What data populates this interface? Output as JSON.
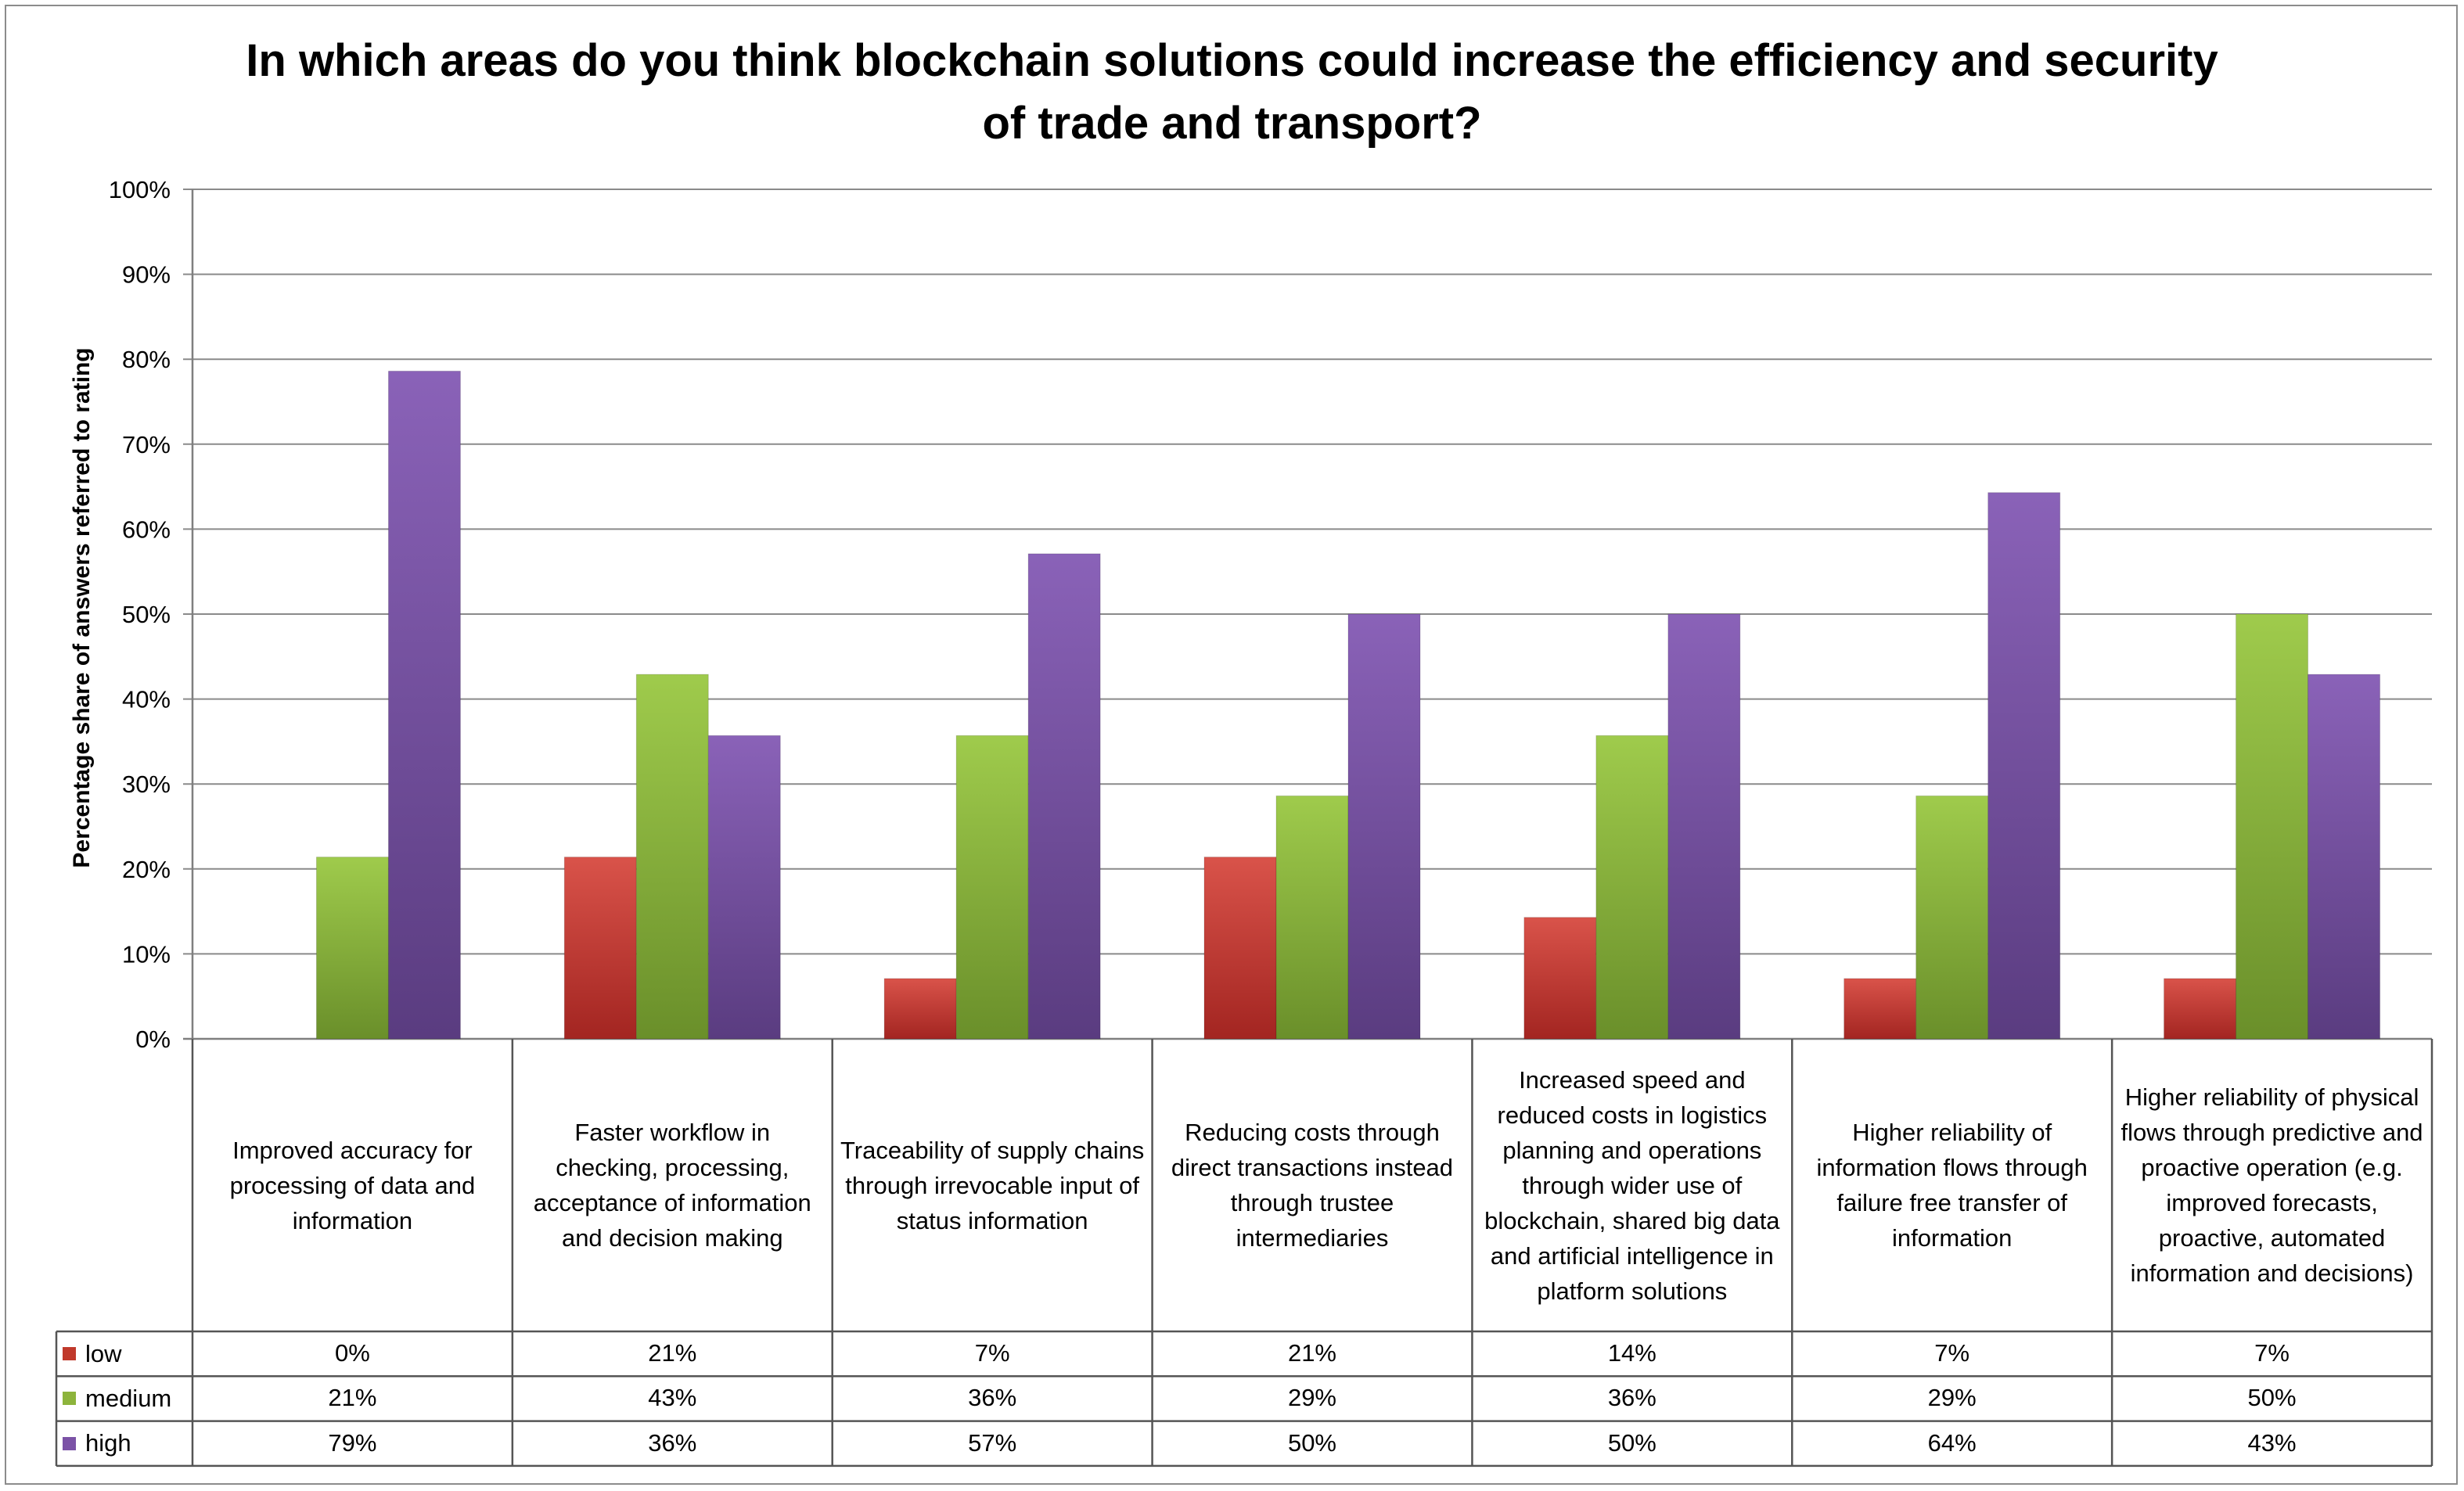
{
  "chart_data": {
    "type": "bar",
    "title": "In which areas do you think blockchain solutions could increase the efficiency and security of trade and transport?",
    "title_lines": [
      "In which areas do you think blockchain solutions could increase the efficiency and security",
      "of trade and transport?"
    ],
    "ylabel": "Percentage share of answers referred to rating",
    "xlabel": "",
    "ylim": [
      0,
      100
    ],
    "yticks": [
      "0%",
      "10%",
      "20%",
      "30%",
      "40%",
      "50%",
      "60%",
      "70%",
      "80%",
      "90%",
      "100%"
    ],
    "grid": true,
    "legend_position": "table-left",
    "categories": [
      "Improved accuracy for processing of data and information",
      "Faster workflow in checking, processing, acceptance of information and decision making",
      "Traceability of supply chains through irrevocable input of status information",
      "Reducing costs through direct transactions instead through trustee intermediaries",
      "Increased speed and reduced costs in logistics planning and operations through wider use of blockchain, shared big data and artificial intelligence in platform solutions",
      "Higher reliability of information flows through failure free transfer of information",
      "Higher reliability of physical flows through predictive and proactive operation (e.g. improved forecasts, proactive, automated information and decisions)"
    ],
    "series": [
      {
        "name": "low",
        "color": "#c0392b",
        "values": [
          0,
          21.4,
          7.1,
          21.4,
          14.3,
          7.1,
          7.1
        ],
        "labels": [
          "0%",
          "21%",
          "7%",
          "21%",
          "14%",
          "7%",
          "7%"
        ]
      },
      {
        "name": "medium",
        "color": "#8db43c",
        "values": [
          21.4,
          42.9,
          35.7,
          28.6,
          35.7,
          28.6,
          50
        ],
        "labels": [
          "21%",
          "43%",
          "36%",
          "29%",
          "36%",
          "29%",
          "50%"
        ]
      },
      {
        "name": "high",
        "color": "#7b52a6",
        "values": [
          78.6,
          35.7,
          57.1,
          50,
          50,
          64.3,
          42.9
        ],
        "labels": [
          "79%",
          "36%",
          "57%",
          "50%",
          "50%",
          "64%",
          "43%"
        ]
      }
    ]
  }
}
